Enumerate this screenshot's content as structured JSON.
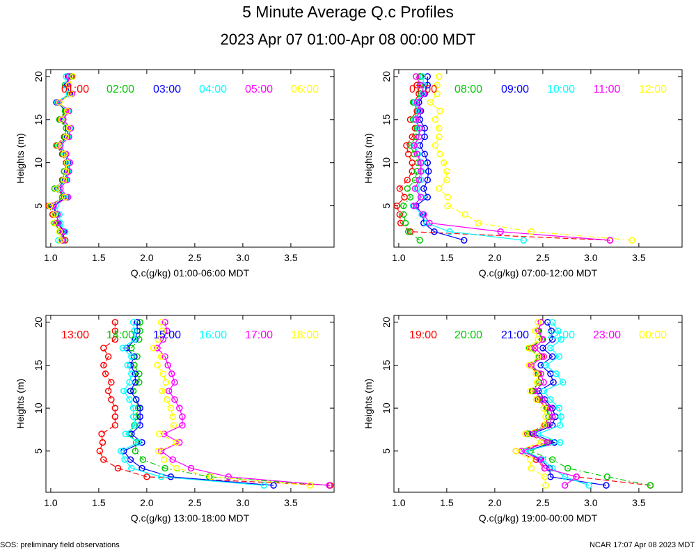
{
  "title": "5 Minute Average Q.c Profiles",
  "subtitle": "2023 Apr 07 01:00-Apr 08 00:00 MDT",
  "footer_left": "SOS: preliminary field observations",
  "footer_right": "NCAR 17:07 Apr 08 2023 MDT",
  "heights": [
    1,
    2,
    3,
    4,
    5,
    6,
    7,
    8,
    9,
    10,
    11,
    12,
    13,
    14,
    15,
    16,
    17,
    18,
    19,
    20
  ],
  "colors": [
    "#ff0000",
    "#00c800",
    "#0000ff",
    "#00ffff",
    "#ff00ff",
    "#ffff00"
  ],
  "chart_data": [
    {
      "type": "line",
      "xlabel": "Q.c(g/kg) 01:00-06:00 MDT",
      "ylabel": "Heights (m)",
      "xlim": [
        0.95,
        3.95
      ],
      "ylim": [
        0.2,
        20.8
      ],
      "xticks": [
        "1.0",
        "1.5",
        "2.0",
        "2.5",
        "3.0",
        "3.5"
      ],
      "yticks": [
        "5",
        "10",
        "15",
        "20"
      ],
      "series": [
        {
          "name": "01:00",
          "color": "#ff0000",
          "values": [
            1.15,
            1.12,
            1.06,
            1.02,
            0.98,
            1.14,
            1.06,
            1.12,
            1.14,
            1.16,
            1.12,
            1.06,
            1.14,
            1.18,
            1.1,
            1.16,
            1.08,
            1.2,
            1.16,
            1.22
          ]
        },
        {
          "name": "02:00",
          "color": "#00c800",
          "values": [
            1.13,
            1.1,
            1.04,
            1.05,
            1.0,
            1.12,
            1.04,
            1.13,
            1.14,
            1.17,
            1.13,
            1.07,
            1.15,
            1.16,
            1.09,
            1.15,
            1.07,
            1.21,
            1.15,
            1.21
          ]
        },
        {
          "name": "03:00",
          "color": "#0000ff",
          "values": [
            1.12,
            1.14,
            1.08,
            1.06,
            1.02,
            1.16,
            1.07,
            1.15,
            1.17,
            1.18,
            1.14,
            1.08,
            1.17,
            1.18,
            1.11,
            1.17,
            1.06,
            1.2,
            1.17,
            1.18
          ]
        },
        {
          "name": "04:00",
          "color": "#00ffff",
          "values": [
            1.08,
            1.15,
            1.1,
            1.09,
            1.05,
            1.17,
            1.08,
            1.16,
            1.18,
            1.19,
            1.15,
            1.09,
            1.18,
            1.2,
            1.12,
            1.18,
            1.07,
            1.19,
            1.16,
            1.16
          ]
        },
        {
          "name": "05:00",
          "color": "#ff00ff",
          "values": [
            1.12,
            1.13,
            1.07,
            1.07,
            1.03,
            1.18,
            1.1,
            1.17,
            1.19,
            1.2,
            1.16,
            1.1,
            1.19,
            1.21,
            1.13,
            1.19,
            1.08,
            1.22,
            1.18,
            1.19
          ]
        },
        {
          "name": "06:00",
          "color": "#ffff00",
          "values": [
            1.1,
            1.09,
            1.03,
            1.04,
            0.99,
            1.15,
            1.06,
            1.14,
            1.16,
            1.17,
            1.14,
            1.08,
            1.16,
            1.19,
            1.11,
            1.17,
            1.09,
            1.21,
            1.19,
            1.23
          ]
        }
      ]
    },
    {
      "type": "line",
      "xlabel": "Q.c(g/kg) 07:00-12:00 MDT",
      "ylabel": "Heights (m)",
      "xlim": [
        0.95,
        3.95
      ],
      "ylim": [
        0.2,
        20.8
      ],
      "xticks": [
        "1.0",
        "1.5",
        "2.0",
        "2.5",
        "3.0",
        "3.5"
      ],
      "yticks": [
        "5",
        "10",
        "15",
        "20"
      ],
      "series": [
        {
          "name": "07:00",
          "color": "#ff0000",
          "values": [
            3.2,
            1.12,
            1.02,
            1.01,
            0.98,
            1.06,
            1.01,
            1.09,
            1.14,
            1.14,
            1.1,
            1.08,
            1.14,
            1.17,
            1.12,
            1.19,
            1.16,
            1.21,
            1.19,
            1.23
          ]
        },
        {
          "name": "08:00",
          "color": "#00c800",
          "values": [
            1.22,
            1.1,
            1.07,
            1.05,
            1.05,
            1.12,
            1.09,
            1.17,
            1.19,
            1.2,
            1.16,
            1.12,
            1.18,
            1.19,
            1.15,
            1.2,
            1.15,
            1.23,
            1.22,
            1.22
          ]
        },
        {
          "name": "09:00",
          "color": "#0000ff",
          "values": [
            1.68,
            1.37,
            1.26,
            1.25,
            1.18,
            1.3,
            1.26,
            1.3,
            1.31,
            1.3,
            1.27,
            1.22,
            1.27,
            1.27,
            1.22,
            1.23,
            1.21,
            1.27,
            1.3,
            1.3
          ]
        },
        {
          "name": "10:00",
          "color": "#00ffff",
          "values": [
            2.3,
            1.53,
            1.29,
            1.24,
            1.15,
            1.24,
            1.19,
            1.23,
            1.24,
            1.24,
            1.2,
            1.17,
            1.21,
            1.21,
            1.17,
            1.21,
            1.17,
            1.25,
            1.26,
            1.25
          ]
        },
        {
          "name": "11:00",
          "color": "#ff00ff",
          "values": [
            3.2,
            2.06,
            1.32,
            1.26,
            1.16,
            1.23,
            1.17,
            1.21,
            1.23,
            1.23,
            1.19,
            1.16,
            1.21,
            1.22,
            1.18,
            1.22,
            1.19,
            1.26,
            1.23,
            1.18
          ]
        },
        {
          "name": "12:00",
          "color": "#ffff00",
          "values": [
            3.43,
            2.38,
            1.83,
            1.69,
            1.51,
            1.51,
            1.42,
            1.5,
            1.5,
            1.47,
            1.43,
            1.38,
            1.42,
            1.42,
            1.38,
            1.43,
            1.33,
            1.4,
            1.4,
            1.42
          ]
        }
      ]
    },
    {
      "type": "line",
      "xlabel": "Q.c(g/kg) 13:00-18:00 MDT",
      "ylabel": "Heights (m)",
      "xlim": [
        0.95,
        3.95
      ],
      "ylim": [
        0.2,
        20.8
      ],
      "xticks": [
        "1.0",
        "1.5",
        "2.0",
        "2.5",
        "3.0",
        "3.5"
      ],
      "yticks": [
        "5",
        "10",
        "15",
        "20"
      ],
      "series": [
        {
          "name": "13:00",
          "color": "#ff0000",
          "values": [
            3.91,
            2.0,
            1.7,
            1.55,
            1.51,
            1.54,
            1.53,
            1.67,
            1.67,
            1.67,
            1.63,
            1.6,
            1.63,
            1.57,
            1.55,
            1.6,
            1.55,
            1.67,
            1.67,
            1.67
          ]
        },
        {
          "name": "14:00",
          "color": "#00c800",
          "values": [
            3.9,
            2.65,
            2.19,
            1.96,
            1.88,
            1.89,
            1.82,
            1.87,
            1.89,
            1.91,
            1.89,
            1.86,
            1.92,
            1.92,
            1.87,
            1.9,
            1.84,
            1.92,
            1.93,
            1.93
          ]
        },
        {
          "name": "15:00",
          "color": "#0000ff",
          "values": [
            3.32,
            2.25,
            1.95,
            1.83,
            1.76,
            1.95,
            1.84,
            1.93,
            1.93,
            1.93,
            1.89,
            1.83,
            1.88,
            1.88,
            1.83,
            1.87,
            1.79,
            1.88,
            1.9,
            1.9
          ]
        },
        {
          "name": "16:00",
          "color": "#00ffff",
          "values": [
            3.22,
            2.15,
            1.84,
            1.77,
            1.73,
            1.91,
            1.78,
            1.88,
            1.86,
            1.86,
            1.82,
            1.76,
            1.82,
            1.84,
            1.8,
            1.84,
            1.75,
            1.87,
            1.87,
            1.86
          ]
        },
        {
          "name": "17:00",
          "color": "#ff00ff",
          "values": [
            3.9,
            2.85,
            2.46,
            2.27,
            2.15,
            2.34,
            2.18,
            2.37,
            2.37,
            2.34,
            2.29,
            2.23,
            2.29,
            2.26,
            2.22,
            2.19,
            2.11,
            2.17,
            2.21,
            2.19
          ]
        },
        {
          "name": "18:00",
          "color": "#ffff00",
          "values": [
            3.7,
            2.67,
            2.31,
            2.18,
            2.12,
            2.31,
            2.13,
            2.28,
            2.27,
            2.25,
            2.21,
            2.16,
            2.2,
            2.17,
            2.11,
            2.15,
            2.07,
            2.12,
            2.16,
            2.15
          ]
        }
      ]
    },
    {
      "type": "line",
      "xlabel": "Q.c(g/kg) 19:00-00:00 MDT",
      "ylabel": "Heights (m)",
      "xlim": [
        0.95,
        3.95
      ],
      "ylim": [
        0.2,
        20.8
      ],
      "xticks": [
        "1.0",
        "1.5",
        "2.0",
        "2.5",
        "3.0",
        "3.5"
      ],
      "yticks": [
        "5",
        "10",
        "15",
        "20"
      ],
      "series": [
        {
          "name": "19:00",
          "color": "#ff0000",
          "values": [
            3.62,
            2.85,
            2.52,
            2.43,
            2.22,
            2.54,
            2.34,
            2.52,
            2.56,
            2.54,
            2.45,
            2.39,
            2.46,
            2.45,
            2.36,
            2.49,
            2.38,
            2.49,
            2.45,
            2.48
          ]
        },
        {
          "name": "20:00",
          "color": "#00c800",
          "values": [
            3.62,
            3.17,
            2.76,
            2.6,
            2.37,
            2.57,
            2.36,
            2.55,
            2.56,
            2.55,
            2.47,
            2.4,
            2.46,
            2.46,
            2.38,
            2.46,
            2.36,
            2.49,
            2.45,
            2.48
          ]
        },
        {
          "name": "21:00",
          "color": "#0000ff",
          "values": [
            3.16,
            2.58,
            2.57,
            2.48,
            2.32,
            2.62,
            2.4,
            2.6,
            2.63,
            2.6,
            2.52,
            2.46,
            2.61,
            2.58,
            2.48,
            2.6,
            2.5,
            2.6,
            2.59,
            2.55
          ]
        },
        {
          "name": "22:00",
          "color": "#00ffff",
          "values": [
            2.98,
            2.73,
            2.6,
            2.5,
            2.32,
            2.68,
            2.45,
            2.68,
            2.69,
            2.67,
            2.58,
            2.51,
            2.71,
            2.64,
            2.53,
            2.67,
            2.58,
            2.69,
            2.66,
            2.6
          ]
        },
        {
          "name": "23:00",
          "color": "#ff00ff",
          "values": [
            2.73,
            2.85,
            2.52,
            2.47,
            2.28,
            2.55,
            2.39,
            2.56,
            2.6,
            2.58,
            2.49,
            2.42,
            2.51,
            2.48,
            2.38,
            2.51,
            2.42,
            2.5,
            2.46,
            2.48
          ]
        },
        {
          "name": "00:00",
          "color": "#ffff00",
          "values": [
            2.53,
            2.52,
            2.38,
            2.37,
            2.22,
            2.48,
            2.32,
            2.51,
            2.53,
            2.51,
            2.43,
            2.37,
            2.44,
            2.43,
            2.36,
            2.45,
            2.35,
            2.45,
            2.42,
            2.45
          ]
        }
      ]
    }
  ]
}
